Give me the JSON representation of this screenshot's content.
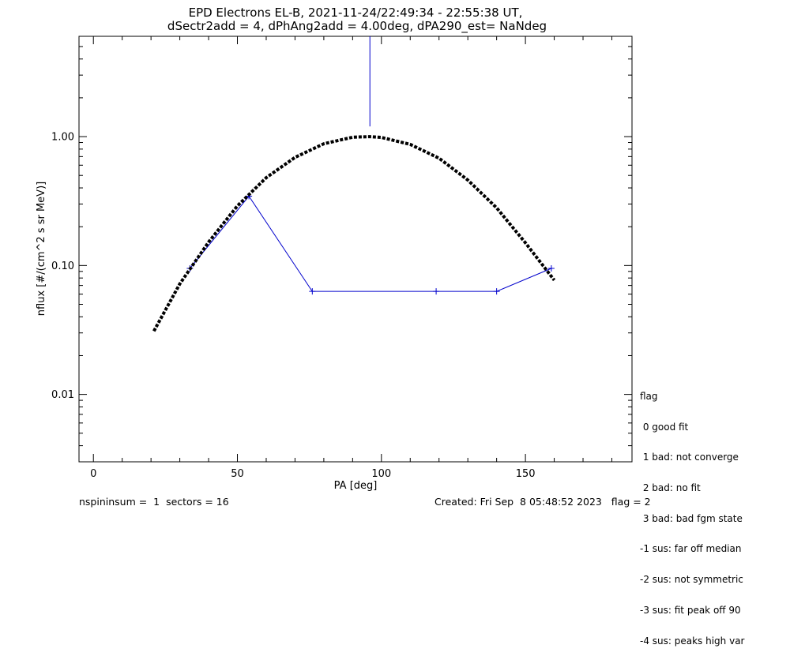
{
  "chart_data": {
    "type": "line",
    "title": "EPD Electrons EL-B, 2021-11-24/22:49:34 - 22:55:38 UT,",
    "subtitle": "dSectr2add = 4, dPhAng2add = 4.00deg, dPA290_est=   NaNdeg",
    "xlabel": "PA [deg]",
    "ylabel": "nflux [#/(cm^2 s sr MeV)]",
    "xlim": [
      -5,
      187
    ],
    "ylim": [
      0.003,
      6
    ],
    "yscale": "log",
    "x_ticks": [
      0,
      50,
      100,
      150
    ],
    "x_tick_labels": [
      "0",
      "50",
      "100",
      "150"
    ],
    "y_ticks": [
      0.01,
      0.1,
      1.0
    ],
    "y_tick_labels": [
      "0.01",
      "0.10",
      "1.00"
    ],
    "series": [
      {
        "style": "blue-line-plus",
        "color": "#0000cc",
        "x": [
          33.5,
          54,
          76,
          119,
          140,
          159
        ],
        "y": [
          0.095,
          0.345,
          0.063,
          0.063,
          0.063,
          0.095
        ]
      },
      {
        "style": "black-dashed-fit",
        "color": "#000000",
        "x": [
          21,
          30,
          40,
          50,
          60,
          70,
          80,
          90,
          96,
          100,
          110,
          120,
          130,
          140,
          150,
          160
        ],
        "y": [
          0.031,
          0.072,
          0.152,
          0.29,
          0.48,
          0.69,
          0.88,
          0.99,
          1.0,
          0.985,
          0.87,
          0.68,
          0.46,
          0.28,
          0.15,
          0.077
        ]
      }
    ],
    "vertical_line": {
      "x": 96,
      "y_from": 1.2,
      "y_to": 6,
      "color": "#0000cc"
    }
  },
  "legend": {
    "title": "flag",
    "items": [
      " 0 good fit",
      " 1 bad: not converge",
      " 2 bad: no fit",
      " 3 bad: bad fgm state",
      "-1 sus: far off median",
      "-2 sus: not symmetric",
      "-3 sus: fit peak off 90",
      "-4 sus: peaks high var"
    ]
  },
  "footer": {
    "left": "nspininsum =  1  sectors = 16",
    "right": "Created: Fri Sep  8 05:48:52 2023   flag = 2"
  }
}
